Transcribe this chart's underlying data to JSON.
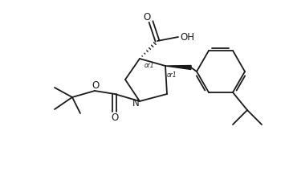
{
  "bg_color": "#ffffff",
  "line_color": "#1a1a1a",
  "lw": 1.3,
  "figsize": [
    3.6,
    2.3
  ],
  "dpi": 100,
  "xlim": [
    0,
    360
  ],
  "ylim": [
    0,
    230
  ]
}
